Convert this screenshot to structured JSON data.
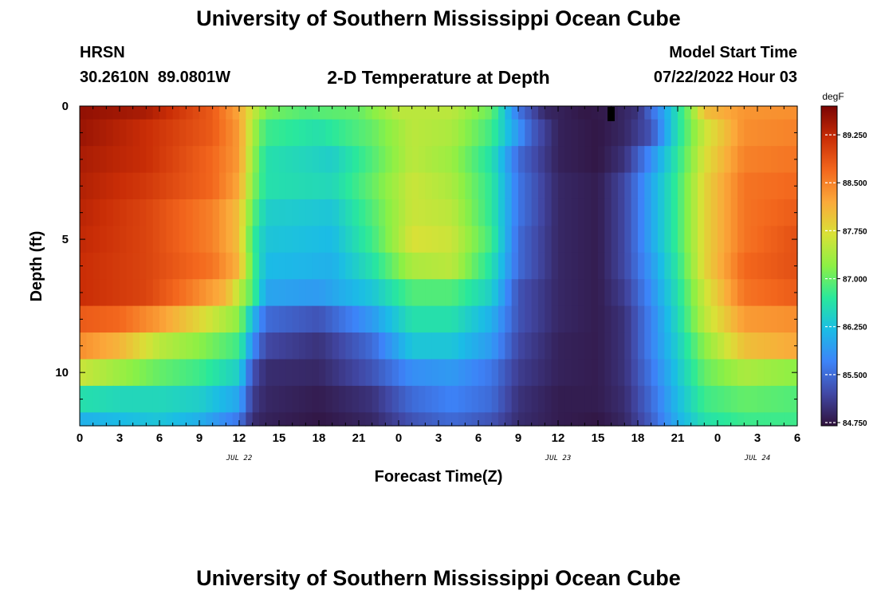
{
  "header": {
    "title": "University of Southern Mississippi Ocean Cube",
    "station": "HRSN",
    "coords": "30.2610N  89.0801W",
    "subtitle": "2-D Temperature at Depth",
    "model_label": "Model Start Time",
    "model_time": "07/22/2022 Hour 03",
    "footer_title": "University of Southern Mississippi Ocean Cube"
  },
  "chart_data": {
    "type": "heatmap",
    "title": "2-D Temperature at Depth",
    "xlabel": "Forecast Time(Z)",
    "ylabel": "Depth (ft)",
    "units": "degF",
    "x_tick_labels": [
      "0",
      "3",
      "6",
      "9",
      "12",
      "15",
      "18",
      "21",
      "0",
      "3",
      "6",
      "9",
      "12",
      "15",
      "18",
      "21",
      "0",
      "3",
      "6"
    ],
    "x_range_hours": [
      0,
      54
    ],
    "date_labels": [
      {
        "text": "JUL 22",
        "hour": 12
      },
      {
        "text": "JUL 23",
        "hour": 36
      },
      {
        "text": "JUL 24",
        "hour": 51
      }
    ],
    "y_tick_labels": [
      "0",
      "5",
      "10"
    ],
    "y_range_ft": [
      0,
      12
    ],
    "depth_levels_ft": [
      0,
      1,
      2,
      3,
      4,
      5,
      6,
      7,
      8,
      9,
      10,
      11,
      11.5,
      12
    ],
    "colorbar_ticks": [
      "89.250",
      "88.500",
      "87.750",
      "87.000",
      "86.250",
      "85.500",
      "84.750"
    ],
    "colorbar_range": [
      84.7,
      89.7
    ],
    "notes": "Warm (~89.5F) early Jul 22 in upper water column, cooling to ~84.8F around Jul 23 15-18Z at all depths, warming again toward Jul 24 06Z."
  }
}
